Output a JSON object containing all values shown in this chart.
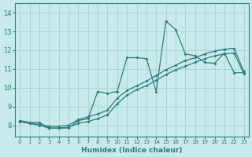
{
  "xlabel": "Humidex (Indice chaleur)",
  "bg_color": "#c8eaea",
  "grid_color": "#9fcfcf",
  "line_color": "#2d7d7d",
  "xlim": [
    -0.5,
    23.5
  ],
  "ylim": [
    7.4,
    14.5
  ],
  "yticks": [
    8,
    9,
    10,
    11,
    12,
    13,
    14
  ],
  "xticks": [
    0,
    1,
    2,
    3,
    4,
    5,
    6,
    7,
    8,
    9,
    10,
    11,
    12,
    13,
    14,
    15,
    16,
    17,
    18,
    19,
    20,
    21,
    22,
    23
  ],
  "line1_x": [
    0,
    1,
    2,
    3,
    4,
    5,
    6,
    7,
    8,
    9,
    10,
    11,
    12,
    13,
    14,
    15,
    16,
    17,
    18,
    19,
    20,
    21,
    22,
    23
  ],
  "line1_y": [
    8.25,
    8.15,
    8.15,
    7.85,
    7.85,
    7.85,
    8.25,
    8.35,
    9.8,
    9.7,
    9.8,
    11.6,
    11.6,
    11.55,
    9.8,
    13.55,
    13.1,
    11.8,
    11.7,
    11.35,
    11.3,
    11.85,
    10.8,
    10.8
  ],
  "line2_x": [
    0,
    1,
    2,
    3,
    4,
    5,
    6,
    7,
    8,
    9,
    10,
    11,
    12,
    13,
    14,
    15,
    16,
    17,
    18,
    19,
    20,
    21,
    22,
    23
  ],
  "line2_y": [
    8.2,
    8.1,
    8.05,
    7.95,
    7.95,
    8.0,
    8.3,
    8.45,
    8.6,
    8.8,
    9.45,
    9.85,
    10.1,
    10.35,
    10.65,
    10.95,
    11.2,
    11.45,
    11.6,
    11.8,
    11.95,
    12.05,
    12.1,
    10.85
  ],
  "line3_x": [
    0,
    1,
    2,
    3,
    4,
    5,
    6,
    7,
    8,
    9,
    10,
    11,
    12,
    13,
    14,
    15,
    16,
    17,
    18,
    19,
    20,
    21,
    22,
    23
  ],
  "line3_y": [
    8.2,
    8.1,
    8.0,
    7.85,
    7.85,
    7.9,
    8.1,
    8.2,
    8.35,
    8.55,
    9.15,
    9.6,
    9.9,
    10.1,
    10.4,
    10.7,
    10.95,
    11.15,
    11.35,
    11.55,
    11.7,
    11.8,
    11.85,
    10.75
  ]
}
